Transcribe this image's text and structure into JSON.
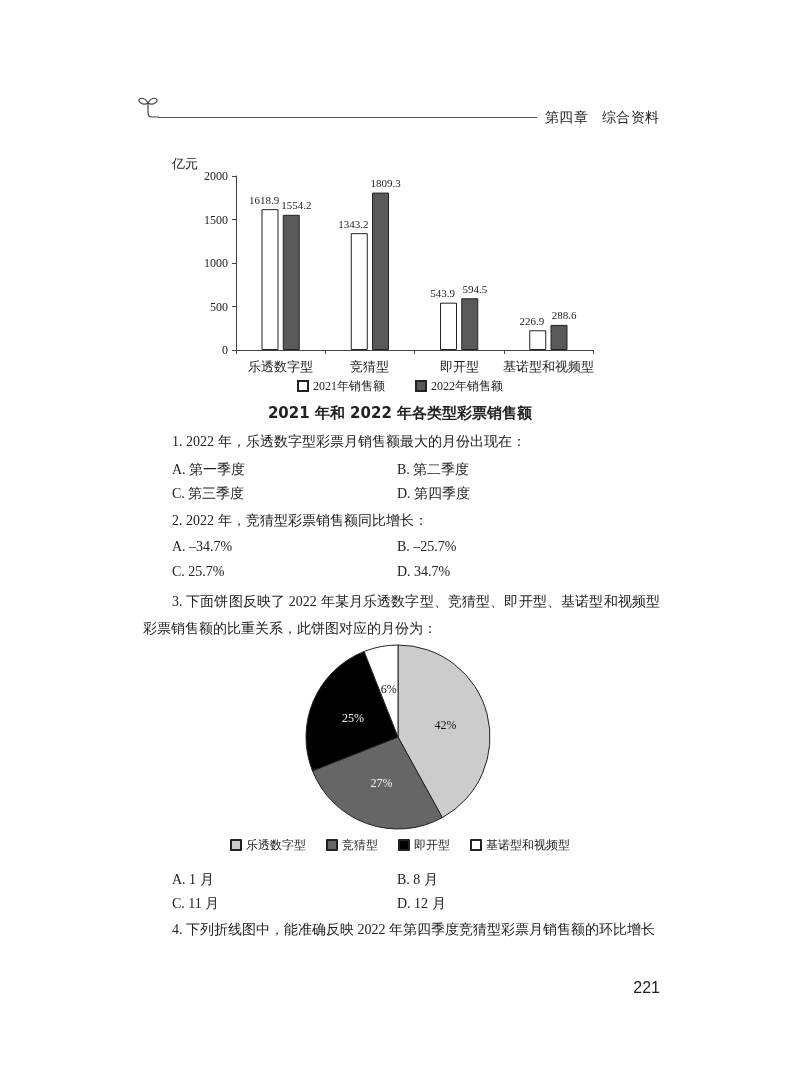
{
  "chart_data": [
    {
      "type": "bar",
      "title": "2021 年和 2022 年各类型彩票销售额",
      "ylabel": "亿元",
      "categories": [
        "乐透数字型",
        "竞猜型",
        "即开型",
        "基诺型和视频型"
      ],
      "series": [
        {
          "name": "2021年销售额",
          "color": "#ffffff",
          "values": [
            1618.9,
            1343.2,
            543.9,
            226.9
          ]
        },
        {
          "name": "2022年销售额",
          "color": "#595959",
          "values": [
            1554.2,
            1809.3,
            594.5,
            288.6
          ]
        }
      ],
      "ylim": [
        0,
        2000
      ],
      "yticks": [
        0,
        500,
        1000,
        1500,
        2000
      ],
      "grid": false,
      "legend": "bottom",
      "data_labels": true,
      "annotations": [
        "第四章　综合资料",
        "1. 2022 年，乐透数字型彩票月销售额最大的月份出现在：",
        "A. 第一季度",
        "B. 第二季度",
        "C. 第三季度",
        "D. 第四季度",
        "2. 2022 年，竞猜型彩票销售额同比增长：",
        "A. –34.7%",
        "B. –25.7%",
        "C. 25.7%",
        "D. 34.7%",
        "3. 下面饼图反映了 2022 年某月乐透数字型、竞猜型、即开型、基诺型和视频型彩票销售额的比重关系，此饼图对应的月份为："
      ]
    },
    {
      "type": "pie",
      "categories": [
        "乐透数字型",
        "竞猜型",
        "即开型",
        "基诺型和视频型"
      ],
      "values": [
        42,
        27,
        25,
        6
      ],
      "colors": [
        "#cccccc",
        "#666666",
        "#000000",
        "#ffffff"
      ],
      "value_labels": [
        "42%",
        "27%",
        "25%",
        "6%"
      ],
      "legend": "bottom",
      "annotations": [
        "A. 1 月",
        "B. 8 月",
        "C. 11 月",
        "D. 12 月",
        "4. 下列折线图中，能准确反映 2022 年第四季度竞猜型彩票月销售额的环比增长",
        "221"
      ]
    }
  ]
}
